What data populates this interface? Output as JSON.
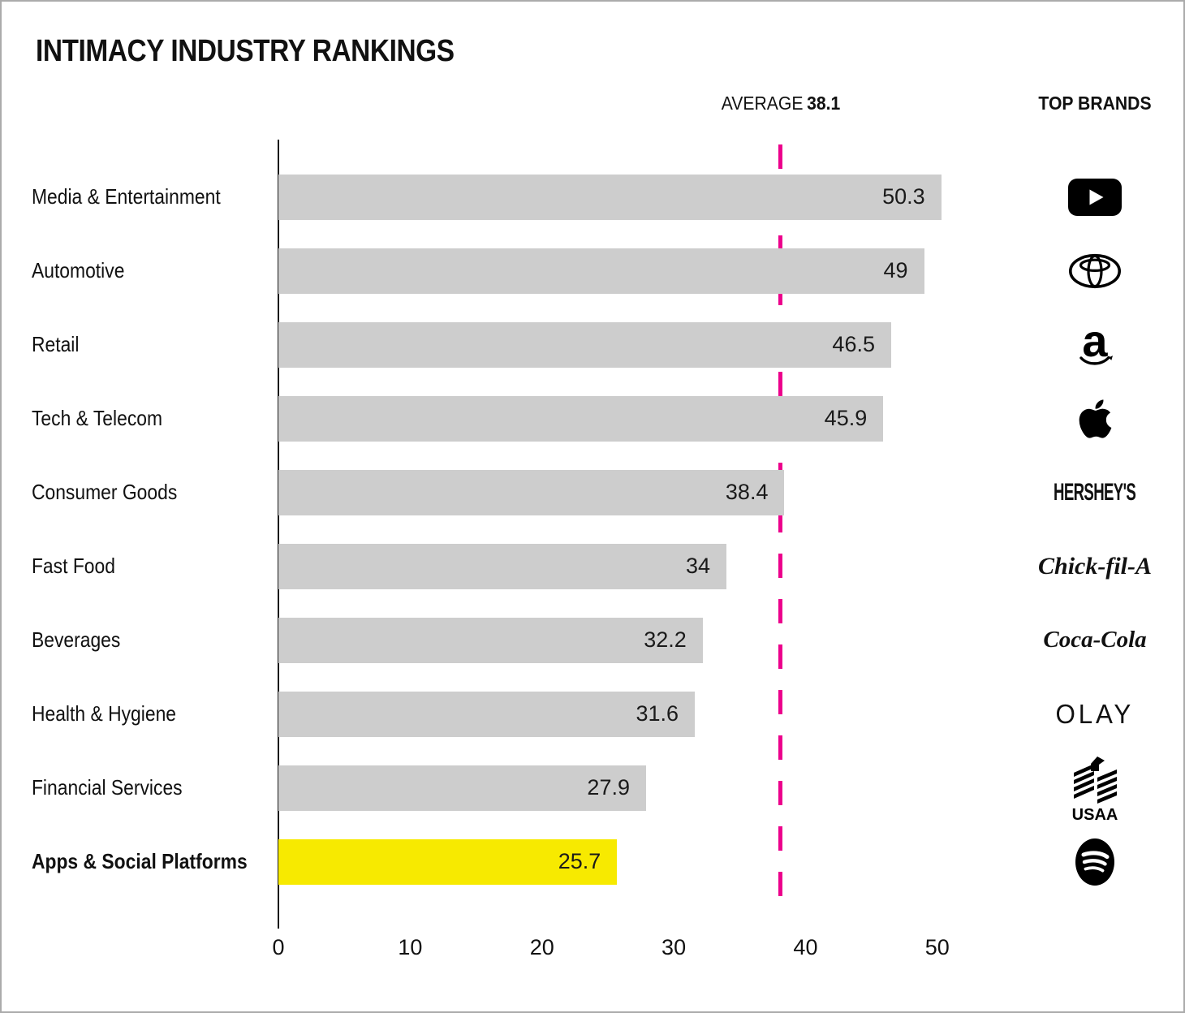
{
  "title": "INTIMACY INDUSTRY RANKINGS",
  "header": {
    "average_label": "AVERAGE",
    "average_value_label": "38.1",
    "top_brands_label": "TOP BRANDS"
  },
  "colors": {
    "bar_gray": "#CDCDCD",
    "highlight_yellow": "#F7EA00",
    "average_line_magenta": "#EC008C",
    "text_black": "#111111",
    "background": "#FFFFFF"
  },
  "icons": [
    "youtube-logo",
    "toyota-logo",
    "amazon-logo",
    "apple-logo",
    "hersheys-logo",
    "chick-fil-a-logo",
    "coca-cola-logo",
    "olay-logo",
    "usaa-logo",
    "spotify-logo"
  ],
  "brand_wordmarks": {
    "amazon_a": "a",
    "hersheys": "HERSHEY'S",
    "chick_fil_a": "Chick-fil-A",
    "coca_cola": "Coca-Cola",
    "olay": "OLAY",
    "usaa": "USAA"
  },
  "chart_data": {
    "type": "bar",
    "orientation": "horizontal",
    "title": "INTIMACY INDUSTRY RANKINGS",
    "categories": [
      "Media & Entertainment",
      "Automotive",
      "Retail",
      "Tech & Telecom",
      "Consumer Goods",
      "Fast Food",
      "Beverages",
      "Health & Hygiene",
      "Financial Services",
      "Apps & Social Platforms"
    ],
    "values": [
      50.3,
      49,
      46.5,
      45.9,
      38.4,
      34,
      32.2,
      31.6,
      27.9,
      25.7
    ],
    "value_labels": [
      "50.3",
      "49",
      "46.5",
      "45.9",
      "38.4",
      "34",
      "32.2",
      "31.6",
      "27.9",
      "25.7"
    ],
    "top_brands": [
      "YouTube",
      "Toyota",
      "Amazon",
      "Apple",
      "Hershey's",
      "Chick-fil-A",
      "Coca-Cola",
      "Olay",
      "USAA",
      "Spotify"
    ],
    "average": 38.1,
    "xticks": [
      0,
      10,
      20,
      30,
      40,
      50
    ],
    "xtick_labels": [
      "0",
      "10",
      "20",
      "30",
      "40",
      "50"
    ],
    "xlim": [
      0,
      55
    ],
    "highlight_index": 9,
    "highlighted_category": "Apps & Social Platforms",
    "grid": false,
    "legend": "none"
  }
}
